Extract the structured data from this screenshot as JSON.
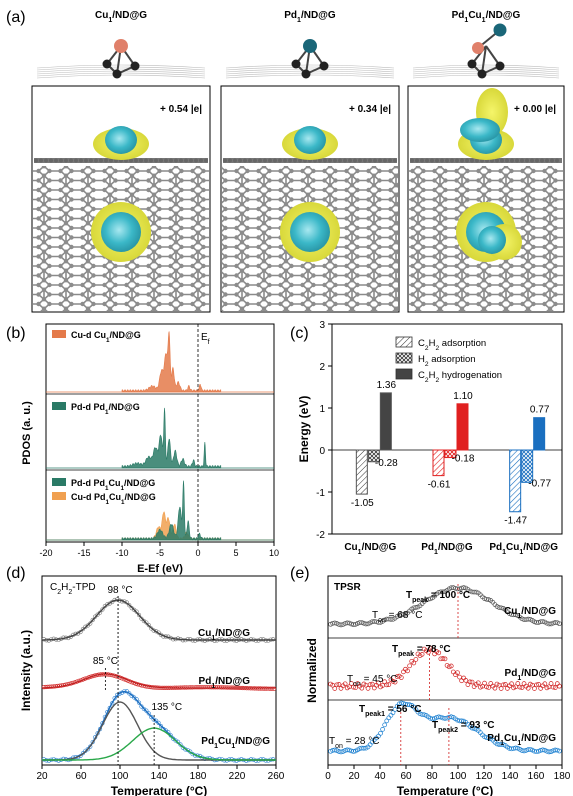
{
  "panel_labels": {
    "a": "(a)",
    "b": "(b)",
    "c": "(c)",
    "d": "(d)",
    "e": "(e)"
  },
  "panel_a": {
    "titles": [
      "Cu₁/ND@G",
      "Pd₁/ND@G",
      "Pd₁Cu₁/ND@G"
    ],
    "charges": [
      "+ 0.54 |e|",
      "+ 0.34 |e|",
      "+ 0.00 |e|"
    ],
    "colors": {
      "cu": "#e0806a",
      "pd": "#1a6678",
      "c": "#222222",
      "lattice": "#8a8a8a",
      "iso_yellow": "#e8e84a",
      "iso_cyan": "#3bb8c8"
    }
  },
  "chart_data": [
    {
      "id": "b",
      "type": "area",
      "xlabel": "E-Ef (eV)",
      "ylabel": "PDOS (a. u.)",
      "xlim": [
        -20,
        10
      ],
      "xticks": [
        "-20",
        "-15",
        "-10",
        "-5",
        "0",
        "5",
        "10"
      ],
      "fermi_label": "E",
      "fermi_sub": "f",
      "series": [
        {
          "name": "Cu-d Cu₁/ND@G",
          "color": "#e47a4a",
          "subpanel": 1,
          "peaks": [
            [
              -6,
              0.08,
              0.6
            ],
            [
              -4.8,
              0.35,
              0.35
            ],
            [
              -4.2,
              0.65,
              0.3
            ],
            [
              -3.8,
              0.95,
              0.18
            ],
            [
              -3.3,
              0.4,
              0.25
            ],
            [
              -2.6,
              0.15,
              0.3
            ],
            [
              -1.2,
              0.08,
              0.2
            ],
            [
              0.3,
              0.12,
              0.15
            ]
          ]
        },
        {
          "name": "Pd-d Pd₁/ND@G",
          "color": "#2a7a66",
          "subpanel": 2,
          "peaks": [
            [
              -8,
              0.05,
              0.8
            ],
            [
              -6.5,
              0.15,
              0.5
            ],
            [
              -5.6,
              0.3,
              0.4
            ],
            [
              -4.9,
              0.5,
              0.3
            ],
            [
              -4.4,
              0.9,
              0.15
            ],
            [
              -3.8,
              0.45,
              0.25
            ],
            [
              -3,
              0.25,
              0.3
            ],
            [
              -2,
              0.12,
              0.3
            ],
            [
              -0.6,
              0.1,
              0.2
            ],
            [
              0.9,
              0.38,
              0.12
            ]
          ]
        },
        {
          "name": "Pd-d Pd₁Cu₁/ND@G",
          "color": "#2a7a66",
          "subpanel": 3,
          "peaks": [
            [
              -5,
              0.15,
              0.5
            ],
            [
              -3.5,
              0.25,
              0.4
            ],
            [
              -2.4,
              0.55,
              0.3
            ],
            [
              -1.9,
              0.95,
              0.15
            ],
            [
              -1.3,
              0.3,
              0.2
            ],
            [
              0.2,
              0.08,
              0.2
            ]
          ]
        },
        {
          "name": "Cu-d Pd₁Cu₁/ND@G",
          "color": "#f0a050",
          "subpanel": 3,
          "peaks": [
            [
              -5.2,
              0.2,
              0.4
            ],
            [
              -4.5,
              0.45,
              0.3
            ],
            [
              -3.9,
              0.35,
              0.3
            ],
            [
              -3.1,
              0.25,
              0.3
            ],
            [
              -1.5,
              0.1,
              0.3
            ]
          ]
        }
      ]
    },
    {
      "id": "c",
      "type": "bar",
      "ylabel": "Energy (eV)",
      "ylim": [
        -2,
        3
      ],
      "yticks": [
        "-2",
        "-1",
        "0",
        "1",
        "2",
        "3"
      ],
      "categories": [
        "Cu₁/ND@G",
        "Pd₁/ND@G",
        "Pd₁Cu₁/ND@G"
      ],
      "series": [
        {
          "name": "C₂H₂ adsorption",
          "values": [
            -1.05,
            -0.61,
            -1.47
          ],
          "labels": [
            "-1.05",
            "-0.61",
            "-1.47"
          ]
        },
        {
          "name": "H₂ adsorption",
          "values": [
            -0.28,
            -0.18,
            -0.77
          ],
          "labels": [
            "-0.28",
            "-0.18",
            "-0.77"
          ]
        },
        {
          "name": "C₂H₂ hydrogenation",
          "values": [
            1.36,
            1.1,
            0.77
          ],
          "labels": [
            "1.36",
            "1.10",
            "0.77"
          ]
        }
      ],
      "colors": [
        "#555555",
        "#e02020",
        "#1a6fc0"
      ],
      "legend_position": "top-right"
    },
    {
      "id": "d",
      "type": "line",
      "title": "C₂H₂-TPD",
      "xlabel": "Temperature (°C)",
      "ylabel": "Intensity (a.u.)",
      "xlim": [
        20,
        260
      ],
      "xticks": [
        "20",
        "60",
        "100",
        "140",
        "180",
        "220",
        "260"
      ],
      "series": [
        {
          "name": "Cu₁/ND@G",
          "color": "#444444",
          "peak": 98,
          "peak_label": "98 °C"
        },
        {
          "name": "Pd₁/ND@G",
          "color": "#c02020",
          "peak": 85,
          "peak_label": "85 °C"
        },
        {
          "name": "Pd₁Cu₁/ND@G",
          "color": "#2a7fd0",
          "peaks": [
            100,
            135
          ],
          "peak_label": "135 °C"
        }
      ]
    },
    {
      "id": "e",
      "type": "scatter",
      "title": "TPSR",
      "xlabel": "Temperature (°C)",
      "ylabel": "Normalized",
      "xlim": [
        0,
        180
      ],
      "xticks": [
        "0",
        "20",
        "40",
        "60",
        "80",
        "100",
        "120",
        "140",
        "160",
        "180"
      ],
      "series": [
        {
          "name": "Cu₁/ND@G",
          "color": "#555555",
          "t_on": 68,
          "t_peak": 100,
          "labels": [
            "T",
            "on",
            " = 68 °C",
            "T",
            "peak",
            " = 100 °C"
          ]
        },
        {
          "name": "Pd₁/ND@G",
          "color": "#d02020",
          "t_on": 45,
          "t_peak": 78,
          "labels": [
            "T",
            "on",
            " = 45 °C",
            "T",
            "peak",
            " = 78 °C"
          ]
        },
        {
          "name": "Pd₁Cu₁/ND@G",
          "color": "#1a7fd0",
          "t_on": 28,
          "t_peak1": 56,
          "t_peak2": 93,
          "labels": [
            "T",
            "on",
            " = 28 °C",
            "T",
            "peak1",
            " = 56 °C",
            "T",
            "peak2",
            " = 93 °C"
          ]
        }
      ]
    }
  ]
}
